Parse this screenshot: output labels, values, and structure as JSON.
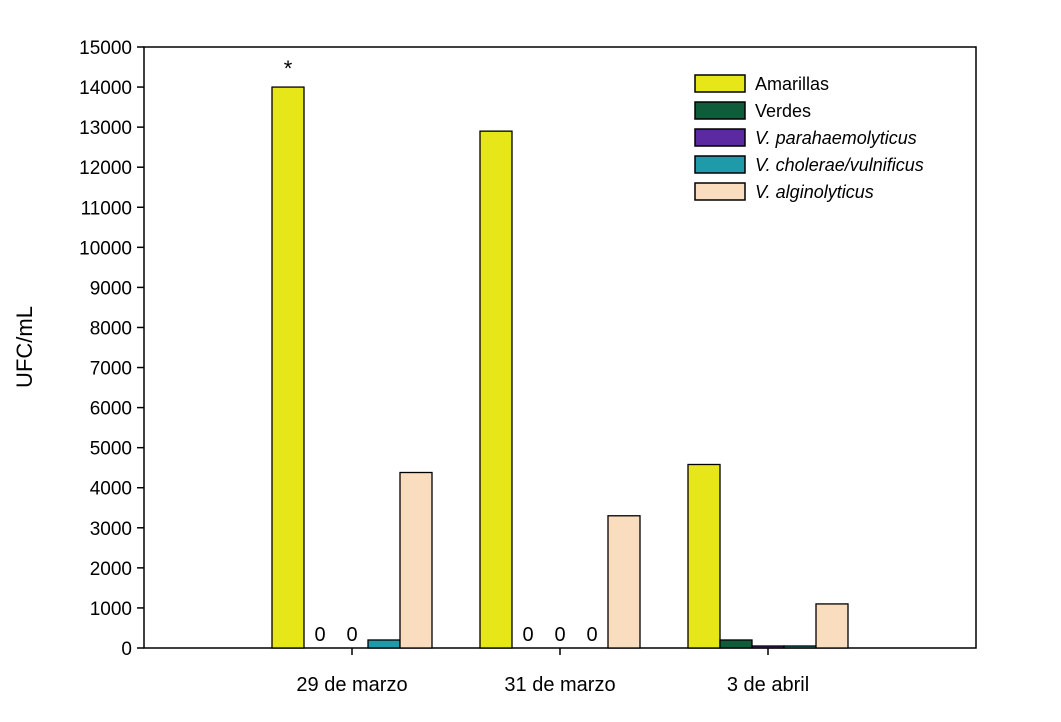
{
  "chart_data": {
    "type": "bar",
    "ylabel": "UFC/mL",
    "xlabel": "",
    "ylim": [
      0,
      15000
    ],
    "yticks": [
      0,
      1000,
      2000,
      3000,
      4000,
      5000,
      6000,
      7000,
      8000,
      9000,
      10000,
      11000,
      12000,
      13000,
      14000,
      15000
    ],
    "grid": false,
    "legend_position": "top-right",
    "categories": [
      "29 de marzo",
      "31 de marzo",
      "3 de abril"
    ],
    "series": [
      {
        "name": "Amarillas",
        "color": "#e6e619",
        "italic": false,
        "values": [
          14000,
          12900,
          4580
        ]
      },
      {
        "name": "Verdes",
        "color": "#0f5c3a",
        "italic": false,
        "values": [
          0,
          0,
          200
        ]
      },
      {
        "name": "V. parahaemolyticus",
        "color": "#5b2aa0",
        "italic": true,
        "values": [
          0,
          0,
          50
        ]
      },
      {
        "name": "V. cholerae/vulnificus",
        "color": "#1f9aa8",
        "italic": true,
        "values": [
          200,
          0,
          50
        ]
      },
      {
        "name": "V. alginolyticus",
        "color": "#fadcbe",
        "italic": true,
        "values": [
          4380,
          3300,
          1100
        ]
      }
    ],
    "annotations": [
      {
        "text": "*",
        "category": 0,
        "series": 0
      },
      {
        "text": "0",
        "category": 0,
        "series": 1
      },
      {
        "text": "0",
        "category": 0,
        "series": 2
      },
      {
        "text": "0",
        "category": 1,
        "series": 1
      },
      {
        "text": "0",
        "category": 1,
        "series": 2
      },
      {
        "text": "0",
        "category": 1,
        "series": 3
      }
    ]
  }
}
